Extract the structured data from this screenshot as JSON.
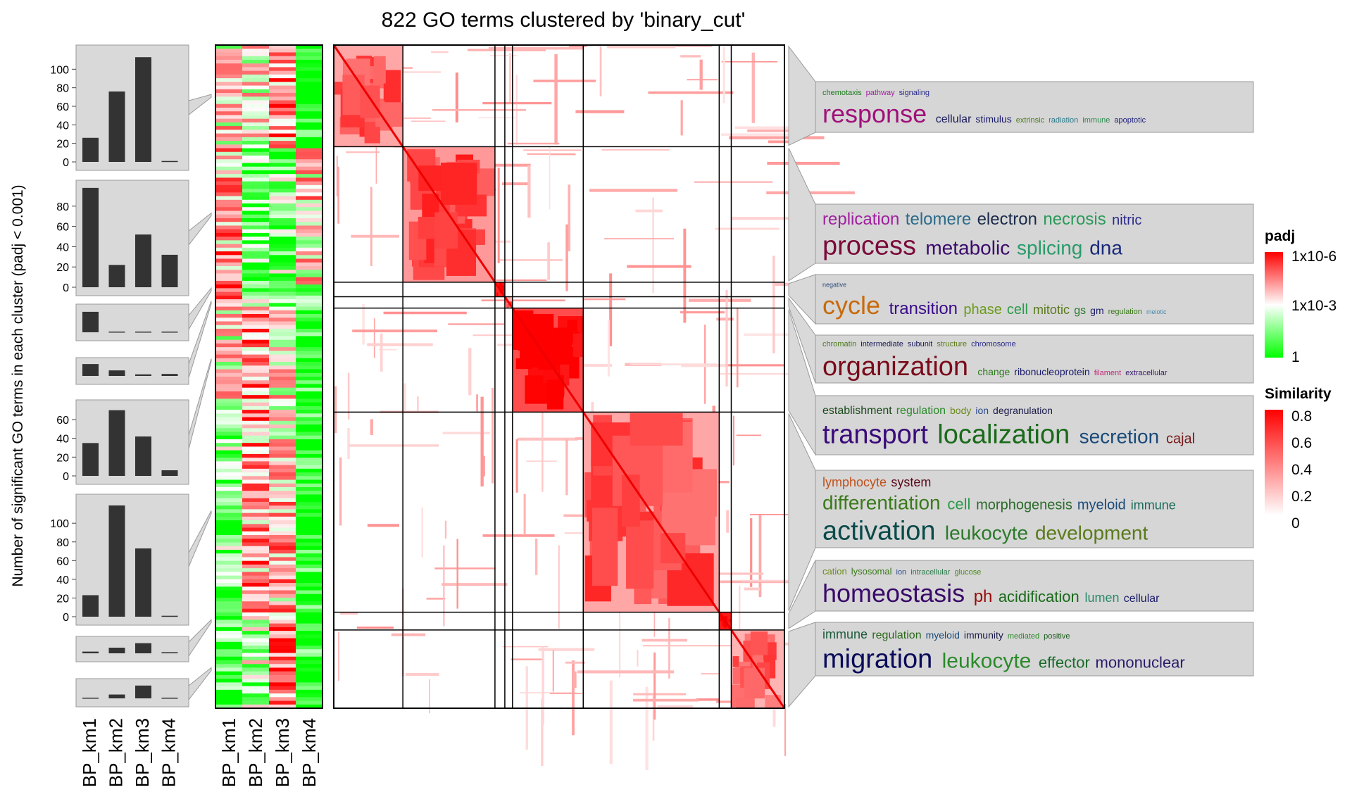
{
  "chart_data": {
    "type": "heatmap",
    "title": "822 GO terms clustered by 'binary_cut'",
    "ylabel": "Number of significant GO terms in each cluster (padj < 0.001)",
    "samples": [
      "BP_km1",
      "BP_km2",
      "BP_km3",
      "BP_km4"
    ],
    "clusters": [
      {
        "bar_values": [
          26,
          76,
          113,
          1
        ],
        "ticks": [
          0,
          20,
          40,
          60,
          80,
          100
        ],
        "ymax": 120,
        "words": [
          {
            "t": "chemotaxis",
            "c": "#1a7a1a",
            "s": 11,
            "r": 0
          },
          {
            "t": "pathway",
            "c": "#a020a0",
            "s": 11,
            "r": 0
          },
          {
            "t": "signaling",
            "c": "#2a2a8a",
            "s": 11,
            "r": 0
          },
          {
            "t": "response",
            "c": "#a0107a",
            "s": 36,
            "r": 1
          },
          {
            "t": "cellular",
            "c": "#1a1a5a",
            "s": 16,
            "r": 1
          },
          {
            "t": "stimulus",
            "c": "#1a1a6a",
            "s": 14,
            "r": 1
          },
          {
            "t": "extrinsic",
            "c": "#4a7a1a",
            "s": 11,
            "r": 1
          },
          {
            "t": "radiation",
            "c": "#2a7a8a",
            "s": 11,
            "r": 1
          },
          {
            "t": "immune",
            "c": "#2a8a4a",
            "s": 11,
            "r": 1
          },
          {
            "t": "apoptotic",
            "c": "#1a1a7a",
            "s": 11,
            "r": 1
          }
        ]
      },
      {
        "bar_values": [
          98,
          22,
          52,
          32
        ],
        "ticks": [
          0,
          20,
          40,
          60,
          80
        ],
        "ymax": 100,
        "words": [
          {
            "t": "replication",
            "c": "#a020a0",
            "s": 24,
            "r": 0
          },
          {
            "t": "telomere",
            "c": "#2a6a8a",
            "s": 24,
            "r": 0
          },
          {
            "t": "electron",
            "c": "#1a2a4a",
            "s": 24,
            "r": 0
          },
          {
            "t": "necrosis",
            "c": "#2a9a5a",
            "s": 24,
            "r": 0
          },
          {
            "t": "nitric",
            "c": "#2a2a8a",
            "s": 20,
            "r": 0
          },
          {
            "t": "process",
            "c": "#7a0a3a",
            "s": 38,
            "r": 1
          },
          {
            "t": "metabolic",
            "c": "#3a0a6a",
            "s": 28,
            "r": 1
          },
          {
            "t": "splicing",
            "c": "#2a9a6a",
            "s": 28,
            "r": 1
          },
          {
            "t": "dna",
            "c": "#1a2a7a",
            "s": 28,
            "r": 1
          }
        ]
      },
      {
        "bar_values": [
          2,
          0,
          0,
          0
        ],
        "ticks": [],
        "ymax": 2.2,
        "words": [
          {
            "t": "negative",
            "c": "#2a4a7a",
            "s": 9,
            "r": 0
          },
          {
            "t": "cycle",
            "c": "#c86a0a",
            "s": 36,
            "r": 1
          },
          {
            "t": "transition",
            "c": "#3a0a8a",
            "s": 24,
            "r": 1
          },
          {
            "t": "phase",
            "c": "#6a9a1a",
            "s": 20,
            "r": 1
          },
          {
            "t": "cell",
            "c": "#2a9a4a",
            "s": 20,
            "r": 1
          },
          {
            "t": "mitotic",
            "c": "#5a7a1a",
            "s": 18,
            "r": 1
          },
          {
            "t": "gs",
            "c": "#2a7a2a",
            "s": 16,
            "r": 1
          },
          {
            "t": "gm",
            "c": "#1a1a6a",
            "s": 14,
            "r": 1
          },
          {
            "t": "regulation",
            "c": "#3a7a1a",
            "s": 11,
            "r": 1
          },
          {
            "t": "meiotic",
            "c": "#4a8aaa",
            "s": 9,
            "r": 1
          }
        ]
      },
      {
        "bar_values": [
          3,
          1.4,
          0.4,
          0.5
        ],
        "ticks": [],
        "ymax": 3.2,
        "words": [
          {
            "t": "chromatin",
            "c": "#4a7a1a",
            "s": 11,
            "r": 0
          },
          {
            "t": "intermediate",
            "c": "#1a1a5a",
            "s": 11,
            "r": 0
          },
          {
            "t": "subunit",
            "c": "#1a1a5a",
            "s": 11,
            "r": 0
          },
          {
            "t": "structure",
            "c": "#5a7a1a",
            "s": 11,
            "r": 0
          },
          {
            "t": "chromosome",
            "c": "#2a2a8a",
            "s": 11,
            "r": 0
          },
          {
            "t": "organization",
            "c": "#7a0a1a",
            "s": 38,
            "r": 1
          },
          {
            "t": "change",
            "c": "#2a7a1a",
            "s": 14,
            "r": 1
          },
          {
            "t": "ribonucleoprotein",
            "c": "#1a1a6a",
            "s": 14,
            "r": 1
          },
          {
            "t": "filament",
            "c": "#c02a7a",
            "s": 11,
            "r": 1
          },
          {
            "t": "extracellular",
            "c": "#3a1a6a",
            "s": 11,
            "r": 1
          }
        ]
      },
      {
        "bar_values": [
          35,
          70,
          42,
          6
        ],
        "ticks": [
          0,
          20,
          40,
          60
        ],
        "ymax": 75,
        "words": [
          {
            "t": "establishment",
            "c": "#1a4a1a",
            "s": 16,
            "r": 0
          },
          {
            "t": "regulation",
            "c": "#2a8a2a",
            "s": 16,
            "r": 0
          },
          {
            "t": "body",
            "c": "#6a8a1a",
            "s": 14,
            "r": 0
          },
          {
            "t": "ion",
            "c": "#2a4a8a",
            "s": 14,
            "r": 0
          },
          {
            "t": "degranulation",
            "c": "#1a1a4a",
            "s": 14,
            "r": 0
          },
          {
            "t": "transport",
            "c": "#3a0a7a",
            "s": 38,
            "r": 1
          },
          {
            "t": "localization",
            "c": "#1a6a1a",
            "s": 38,
            "r": 1
          },
          {
            "t": "secretion",
            "c": "#1a4a7a",
            "s": 28,
            "r": 1
          },
          {
            "t": "cajal",
            "c": "#7a1a1a",
            "s": 20,
            "r": 1
          }
        ]
      },
      {
        "bar_values": [
          23,
          119,
          73,
          1
        ],
        "ticks": [
          0,
          20,
          40,
          60,
          80,
          100
        ],
        "ymax": 125,
        "words": [
          {
            "t": "lymphocyte",
            "c": "#c0501a",
            "s": 18,
            "r": 0
          },
          {
            "t": "system",
            "c": "#5a0a1a",
            "s": 18,
            "r": 0
          },
          {
            "t": "differentiation",
            "c": "#3a7a1a",
            "s": 28,
            "r": 1
          },
          {
            "t": "cell",
            "c": "#2a9a4a",
            "s": 22,
            "r": 1
          },
          {
            "t": "morphogenesis",
            "c": "#2a6a2a",
            "s": 20,
            "r": 1
          },
          {
            "t": "myeloid",
            "c": "#1a4a7a",
            "s": 20,
            "r": 1
          },
          {
            "t": "immune",
            "c": "#1a6a5a",
            "s": 18,
            "r": 1
          },
          {
            "t": "activation",
            "c": "#0a4a4a",
            "s": 38,
            "r": 2
          },
          {
            "t": "leukocyte",
            "c": "#2a7a2a",
            "s": 28,
            "r": 2
          },
          {
            "t": "development",
            "c": "#5a7a1a",
            "s": 28,
            "r": 2
          }
        ]
      },
      {
        "bar_values": [
          1.5,
          5,
          9,
          1
        ],
        "ticks": [],
        "ymax": 10,
        "words": [
          {
            "t": "cation",
            "c": "#6a8a1a",
            "s": 13,
            "r": 0
          },
          {
            "t": "lysosomal",
            "c": "#3a7a1a",
            "s": 13,
            "r": 0
          },
          {
            "t": "ion",
            "c": "#2a4a8a",
            "s": 11,
            "r": 0
          },
          {
            "t": "intracellular",
            "c": "#2a7a4a",
            "s": 11,
            "r": 0
          },
          {
            "t": "glucose",
            "c": "#4a8a1a",
            "s": 11,
            "r": 0
          },
          {
            "t": "homeostasis",
            "c": "#3a0a6a",
            "s": 36,
            "r": 1
          },
          {
            "t": "ph",
            "c": "#9a0a0a",
            "s": 24,
            "r": 1
          },
          {
            "t": "acidification",
            "c": "#1a6a1a",
            "s": 22,
            "r": 1
          },
          {
            "t": "lumen",
            "c": "#2a8a6a",
            "s": 18,
            "r": 1
          },
          {
            "t": "cellular",
            "c": "#1a1a6a",
            "s": 16,
            "r": 1
          }
        ]
      },
      {
        "bar_values": [
          1,
          6,
          20,
          1
        ],
        "ticks": [],
        "ymax": 22,
        "words": [
          {
            "t": "immune",
            "c": "#1a5a3a",
            "s": 18,
            "r": 0
          },
          {
            "t": "regulation",
            "c": "#2a6a1a",
            "s": 16,
            "r": 0
          },
          {
            "t": "myeloid",
            "c": "#1a4a7a",
            "s": 14,
            "r": 0
          },
          {
            "t": "immunity",
            "c": "#1a1a4a",
            "s": 14,
            "r": 0
          },
          {
            "t": "mediated",
            "c": "#2a8a2a",
            "s": 11,
            "r": 0
          },
          {
            "t": "positive",
            "c": "#1a5a1a",
            "s": 11,
            "r": 0
          },
          {
            "t": "migration",
            "c": "#0a0a5a",
            "s": 38,
            "r": 1
          },
          {
            "t": "leukocyte",
            "c": "#2a8a2a",
            "s": 30,
            "r": 1
          },
          {
            "t": "effector",
            "c": "#1a6a2a",
            "s": 22,
            "r": 1
          },
          {
            "t": "mononuclear",
            "c": "#2a1a6a",
            "s": 22,
            "r": 1
          }
        ]
      }
    ],
    "cluster_sizes": [
      126,
      168,
      18,
      14,
      129,
      248,
      22,
      97
    ],
    "legend_padj": {
      "title": "padj",
      "labels": [
        "1x10-6",
        "1x10-3",
        "1"
      ],
      "colors": [
        "#ff0000",
        "#ffffff",
        "#00ff00"
      ]
    },
    "legend_similarity": {
      "title": "Similarity",
      "labels": [
        "0.8",
        "0.6",
        "0.4",
        "0.2",
        "0"
      ],
      "colors": [
        "#ff0000",
        "#ffffff"
      ]
    }
  }
}
